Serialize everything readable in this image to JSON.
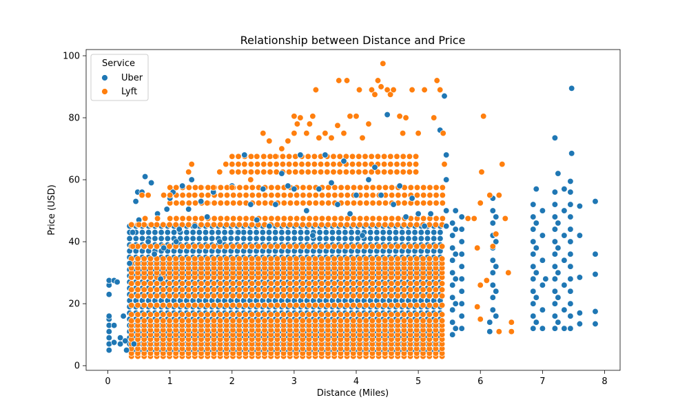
{
  "chart_data": {
    "type": "scatter",
    "title": "Relationship between Distance and Price",
    "xlabel": "Distance (Miles)",
    "ylabel": "Price (USD)",
    "xlim": [
      -0.35,
      8.25
    ],
    "ylim": [
      -1.5,
      102
    ],
    "xticks": [
      0,
      1,
      2,
      3,
      4,
      5,
      6,
      7,
      8
    ],
    "yticks": [
      0,
      20,
      40,
      60,
      80,
      100
    ],
    "grid": false,
    "legend": {
      "title": "Service",
      "position": "top-left"
    },
    "series": [
      {
        "name": "Uber",
        "color": "#1f77b4",
        "points": [
          [
            0.02,
            5
          ],
          [
            0.02,
            7
          ],
          [
            0.02,
            9
          ],
          [
            0.02,
            11
          ],
          [
            0.02,
            13
          ],
          [
            0.02,
            15
          ],
          [
            0.02,
            16
          ],
          [
            0.02,
            23
          ],
          [
            0.02,
            26
          ],
          [
            0.02,
            27.5
          ],
          [
            0.1,
            27.5
          ],
          [
            0.1,
            7.5
          ],
          [
            0.1,
            13
          ],
          [
            0.15,
            27
          ],
          [
            0.2,
            9
          ],
          [
            0.2,
            7
          ],
          [
            0.25,
            16
          ],
          [
            0.28,
            8
          ],
          [
            0.3,
            5
          ],
          [
            0.35,
            33
          ],
          [
            0.4,
            43
          ],
          [
            0.42,
            7
          ],
          [
            0.45,
            53
          ],
          [
            0.48,
            56
          ],
          [
            0.5,
            47
          ],
          [
            0.55,
            56
          ],
          [
            0.6,
            61
          ],
          [
            0.65,
            40
          ],
          [
            0.7,
            59
          ],
          [
            0.75,
            36
          ],
          [
            0.8,
            49
          ],
          [
            0.85,
            28
          ],
          [
            0.9,
            38
          ],
          [
            0.95,
            50.5
          ],
          [
            1.0,
            54
          ],
          [
            1.05,
            56
          ],
          [
            1.1,
            40
          ],
          [
            1.15,
            44
          ],
          [
            1.2,
            58
          ],
          [
            1.3,
            50.5
          ],
          [
            1.35,
            60
          ],
          [
            1.4,
            45
          ],
          [
            1.5,
            53
          ],
          [
            1.6,
            48
          ],
          [
            1.7,
            56
          ],
          [
            1.8,
            40
          ],
          [
            2.0,
            58
          ],
          [
            2.1,
            43
          ],
          [
            2.2,
            68
          ],
          [
            2.3,
            52
          ],
          [
            2.4,
            47
          ],
          [
            2.5,
            57
          ],
          [
            2.6,
            45
          ],
          [
            2.7,
            52
          ],
          [
            2.8,
            62
          ],
          [
            2.9,
            58
          ],
          [
            3.0,
            57
          ],
          [
            3.1,
            68
          ],
          [
            3.2,
            50
          ],
          [
            3.3,
            42
          ],
          [
            3.4,
            57
          ],
          [
            3.5,
            68
          ],
          [
            3.6,
            59
          ],
          [
            3.7,
            52
          ],
          [
            3.8,
            66
          ],
          [
            3.9,
            49
          ],
          [
            4.0,
            55
          ],
          [
            4.1,
            42
          ],
          [
            4.2,
            60
          ],
          [
            4.3,
            64
          ],
          [
            4.4,
            55
          ],
          [
            4.5,
            81
          ],
          [
            4.6,
            52
          ],
          [
            4.7,
            58
          ],
          [
            4.8,
            48
          ],
          [
            4.9,
            54
          ],
          [
            5.0,
            49
          ],
          [
            5.1,
            45
          ],
          [
            5.2,
            49
          ],
          [
            5.35,
            76
          ],
          [
            5.42,
            87
          ],
          [
            5.45,
            68
          ],
          [
            5.45,
            60
          ],
          [
            5.45,
            50
          ],
          [
            5.45,
            45
          ],
          [
            5.55,
            10
          ],
          [
            5.55,
            14
          ],
          [
            5.55,
            18
          ],
          [
            5.55,
            22
          ],
          [
            5.55,
            26
          ],
          [
            5.55,
            30
          ],
          [
            5.55,
            34
          ],
          [
            5.55,
            38
          ],
          [
            5.55,
            42
          ],
          [
            5.55,
            46
          ],
          [
            5.6,
            12
          ],
          [
            5.6,
            20
          ],
          [
            5.6,
            28
          ],
          [
            5.6,
            36
          ],
          [
            5.6,
            44
          ],
          [
            5.6,
            50
          ],
          [
            5.7,
            12
          ],
          [
            5.7,
            16
          ],
          [
            5.7,
            20
          ],
          [
            5.7,
            24
          ],
          [
            5.7,
            28
          ],
          [
            5.7,
            32
          ],
          [
            5.7,
            36
          ],
          [
            5.7,
            40
          ],
          [
            5.7,
            44
          ],
          [
            5.7,
            48
          ],
          [
            6.15,
            11
          ],
          [
            6.15,
            14
          ],
          [
            6.2,
            18
          ],
          [
            6.2,
            22
          ],
          [
            6.2,
            26
          ],
          [
            6.2,
            30
          ],
          [
            6.2,
            34
          ],
          [
            6.2,
            38
          ],
          [
            6.2,
            42
          ],
          [
            6.2,
            46
          ],
          [
            6.2,
            50
          ],
          [
            6.2,
            54
          ],
          [
            6.25,
            16
          ],
          [
            6.25,
            24
          ],
          [
            6.25,
            32
          ],
          [
            6.25,
            40
          ],
          [
            6.25,
            48
          ],
          [
            6.85,
            12
          ],
          [
            6.85,
            16
          ],
          [
            6.85,
            20
          ],
          [
            6.85,
            24
          ],
          [
            6.85,
            28
          ],
          [
            6.85,
            32
          ],
          [
            6.85,
            36
          ],
          [
            6.85,
            40
          ],
          [
            6.85,
            44
          ],
          [
            6.85,
            48
          ],
          [
            6.85,
            52
          ],
          [
            6.9,
            14
          ],
          [
            6.9,
            22
          ],
          [
            6.9,
            30
          ],
          [
            6.9,
            38
          ],
          [
            6.9,
            46
          ],
          [
            6.9,
            57
          ],
          [
            7.0,
            12
          ],
          [
            7.0,
            18
          ],
          [
            7.0,
            26
          ],
          [
            7.0,
            34
          ],
          [
            7.0,
            42
          ],
          [
            7.0,
            50
          ],
          [
            7.05,
            28
          ],
          [
            7.2,
            12
          ],
          [
            7.2,
            16
          ],
          [
            7.2,
            20
          ],
          [
            7.2,
            24
          ],
          [
            7.2,
            28
          ],
          [
            7.2,
            32
          ],
          [
            7.2,
            36
          ],
          [
            7.2,
            40
          ],
          [
            7.2,
            44
          ],
          [
            7.2,
            48
          ],
          [
            7.2,
            52
          ],
          [
            7.2,
            56
          ],
          [
            7.2,
            73.5
          ],
          [
            7.25,
            14
          ],
          [
            7.25,
            22
          ],
          [
            7.25,
            30
          ],
          [
            7.25,
            38
          ],
          [
            7.25,
            46
          ],
          [
            7.25,
            62
          ],
          [
            7.35,
            12
          ],
          [
            7.35,
            18
          ],
          [
            7.35,
            26
          ],
          [
            7.35,
            34
          ],
          [
            7.35,
            42
          ],
          [
            7.35,
            50
          ],
          [
            7.35,
            57
          ],
          [
            7.45,
            12
          ],
          [
            7.45,
            16
          ],
          [
            7.45,
            20
          ],
          [
            7.45,
            24
          ],
          [
            7.45,
            28
          ],
          [
            7.45,
            32
          ],
          [
            7.45,
            36
          ],
          [
            7.45,
            40
          ],
          [
            7.45,
            44
          ],
          [
            7.45,
            48
          ],
          [
            7.45,
            52
          ],
          [
            7.45,
            56
          ],
          [
            7.45,
            59.5
          ],
          [
            7.47,
            68.5
          ],
          [
            7.47,
            89.5
          ],
          [
            7.6,
            13.5
          ],
          [
            7.6,
            17
          ],
          [
            7.6,
            28.5
          ],
          [
            7.6,
            42
          ],
          [
            7.6,
            51.5
          ],
          [
            7.85,
            13.5
          ],
          [
            7.85,
            17.5
          ],
          [
            7.85,
            29.5
          ],
          [
            7.85,
            36
          ],
          [
            7.85,
            53
          ]
        ]
      },
      {
        "name": "Lyft",
        "color": "#ff7f0e",
        "points": [
          [
            0.4,
            38.5
          ],
          [
            0.5,
            45.5
          ],
          [
            0.55,
            55
          ],
          [
            0.6,
            47.5
          ],
          [
            0.65,
            55
          ],
          [
            0.7,
            45.5
          ],
          [
            0.8,
            47.5
          ],
          [
            0.9,
            55
          ],
          [
            1.0,
            55
          ],
          [
            1.1,
            57.5
          ],
          [
            1.2,
            52.5
          ],
          [
            1.3,
            62.5
          ],
          [
            1.35,
            65
          ],
          [
            1.4,
            55
          ],
          [
            1.5,
            57.5
          ],
          [
            1.6,
            52.5
          ],
          [
            1.7,
            57.5
          ],
          [
            1.8,
            62.5
          ],
          [
            1.9,
            65
          ],
          [
            2.0,
            57.5
          ],
          [
            2.1,
            62.5
          ],
          [
            2.2,
            65
          ],
          [
            2.3,
            60
          ],
          [
            2.4,
            67.5
          ],
          [
            2.5,
            75
          ],
          [
            2.6,
            72.5
          ],
          [
            2.7,
            67.5
          ],
          [
            2.8,
            70
          ],
          [
            2.9,
            72.5
          ],
          [
            3.0,
            75
          ],
          [
            3.0,
            80.5
          ],
          [
            3.05,
            78
          ],
          [
            3.1,
            80
          ],
          [
            3.2,
            75
          ],
          [
            3.25,
            78
          ],
          [
            3.3,
            80.5
          ],
          [
            3.35,
            89
          ],
          [
            3.4,
            73.5
          ],
          [
            3.5,
            75
          ],
          [
            3.6,
            73.5
          ],
          [
            3.7,
            77.5
          ],
          [
            3.72,
            92
          ],
          [
            3.8,
            75
          ],
          [
            3.85,
            92
          ],
          [
            3.9,
            80.5
          ],
          [
            4.0,
            80.5
          ],
          [
            4.05,
            89
          ],
          [
            4.1,
            73.5
          ],
          [
            4.2,
            78
          ],
          [
            4.25,
            89
          ],
          [
            4.3,
            87.5
          ],
          [
            4.35,
            92
          ],
          [
            4.4,
            90
          ],
          [
            4.43,
            97.5
          ],
          [
            4.5,
            89
          ],
          [
            4.55,
            87.5
          ],
          [
            4.6,
            89
          ],
          [
            4.7,
            80.5
          ],
          [
            4.75,
            75
          ],
          [
            4.8,
            80
          ],
          [
            4.9,
            89
          ],
          [
            5.0,
            75
          ],
          [
            5.1,
            89
          ],
          [
            5.25,
            80
          ],
          [
            5.3,
            92
          ],
          [
            5.35,
            89
          ],
          [
            5.4,
            75
          ],
          [
            5.42,
            65
          ],
          [
            5.8,
            47.5
          ],
          [
            5.9,
            47.5
          ],
          [
            5.95,
            38
          ],
          [
            6.0,
            52.5
          ],
          [
            6.0,
            26
          ],
          [
            6.02,
            62.5
          ],
          [
            6.05,
            80.5
          ],
          [
            6.1,
            27.5
          ],
          [
            6.15,
            55
          ],
          [
            6.2,
            38.5
          ],
          [
            6.25,
            42.5
          ],
          [
            6.3,
            55
          ],
          [
            6.35,
            65
          ],
          [
            6.4,
            47.5
          ],
          [
            6.45,
            30
          ],
          [
            6.5,
            11
          ],
          [
            6.5,
            14
          ],
          [
            6.3,
            11
          ],
          [
            6.0,
            15
          ],
          [
            5.95,
            19
          ]
        ]
      }
    ],
    "dense_regions": [
      {
        "series": "Uber",
        "x_range": [
          0.35,
          5.45
        ],
        "levels": [
          5,
          7,
          9,
          11,
          13,
          15,
          17,
          19,
          21,
          23,
          25,
          27,
          29,
          31,
          33,
          35,
          37,
          39,
          41,
          43,
          45
        ]
      },
      {
        "series": "Lyft",
        "x_range": [
          0.38,
          5.45
        ],
        "levels": [
          3,
          4,
          5.5,
          7,
          8.5,
          10,
          11.5,
          13,
          14.5,
          16.5,
          19.5,
          22.5,
          24.5,
          26.5,
          28.5,
          30,
          31.5,
          33,
          34.5,
          38.5,
          45.5
        ]
      },
      {
        "series": "Lyft",
        "x_range": [
          1.0,
          5.45
        ],
        "levels": [
          47.5,
          52.5,
          55,
          57.5
        ]
      },
      {
        "series": "Lyft",
        "x_range": [
          2.0,
          5.0
        ],
        "levels": [
          62.5,
          65,
          67.5
        ]
      }
    ]
  }
}
